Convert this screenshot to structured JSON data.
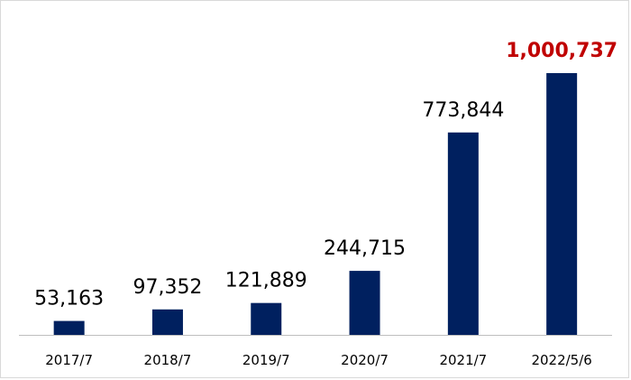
{
  "chart_data": {
    "type": "bar",
    "categories": [
      "2017/7",
      "2018/7",
      "2019/7",
      "2020/7",
      "2021/7",
      "2022/5/6"
    ],
    "values": [
      53163,
      97352,
      121889,
      244715,
      773844,
      1000737
    ],
    "value_labels": [
      "53,163",
      "97,352",
      "121,889",
      "244,715",
      "773,844",
      "1,000,737"
    ],
    "highlight_index": 5,
    "colors": {
      "bar": "#00205f",
      "highlight_label": "#c00000",
      "axis": "#bfbfbf"
    },
    "ylim": [
      0,
      1000737
    ],
    "grid": false,
    "legend": "none",
    "title": "",
    "xlabel": "",
    "ylabel": ""
  }
}
